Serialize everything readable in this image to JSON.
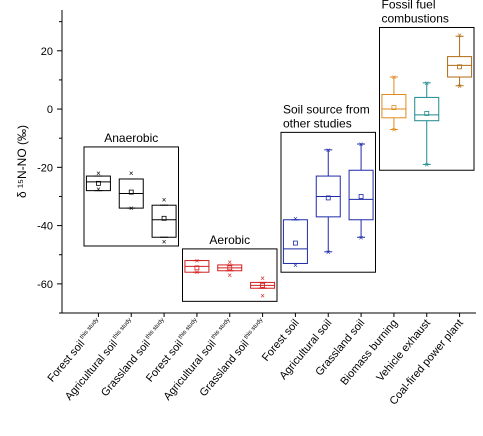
{
  "chart_data": {
    "type": "box",
    "ylabel": "δ ¹⁵N-NO (‰)",
    "ylim": [
      -70,
      34
    ],
    "yticks": [
      20,
      0,
      -20,
      -40,
      -60
    ],
    "grid": false,
    "categories": [
      {
        "label": "Forest soil",
        "sup": "this study"
      },
      {
        "label": "Agricultural soil",
        "sup": "this study"
      },
      {
        "label": "Grassland soil",
        "sup": "this study"
      },
      {
        "label": "Forest soil",
        "sup": "this study"
      },
      {
        "label": "Agricultural soil",
        "sup": "this study"
      },
      {
        "label": "Grassland soil",
        "sup": "this study"
      },
      {
        "label": "Forest soil",
        "sup": ""
      },
      {
        "label": "Agricultural soil",
        "sup": ""
      },
      {
        "label": "Grassland soil",
        "sup": ""
      },
      {
        "label": "Biomass burning",
        "sup": ""
      },
      {
        "label": "Vehicle exhaust",
        "sup": ""
      },
      {
        "label": "Coal-fired power plant",
        "sup": ""
      }
    ],
    "boxes": [
      {
        "q1": -28,
        "median": -25,
        "q3": -23,
        "whisker_low": -28,
        "whisker_high": -23,
        "mean": -25.5,
        "min": -27.5,
        "max": -22,
        "color": "#000000"
      },
      {
        "q1": -34,
        "median": -29,
        "q3": -24,
        "whisker_low": -34,
        "whisker_high": -24,
        "mean": -28.5,
        "min": -34,
        "max": -22,
        "color": "#000000"
      },
      {
        "q1": -44,
        "median": -38,
        "q3": -33,
        "whisker_low": -44,
        "whisker_high": -33,
        "mean": -37.5,
        "min": -45.5,
        "max": -31,
        "color": "#000000"
      },
      {
        "q1": -56,
        "median": -54,
        "q3": -52,
        "whisker_low": -56,
        "whisker_high": -52,
        "mean": -54.5,
        "min": -56,
        "max": -52,
        "color": "#d21f1f"
      },
      {
        "q1": -55.5,
        "median": -54.5,
        "q3": -53.5,
        "whisker_low": -55.5,
        "whisker_high": -53.5,
        "mean": -54.5,
        "min": -57,
        "max": -52.5,
        "color": "#d21f1f"
      },
      {
        "q1": -61.5,
        "median": -60.5,
        "q3": -59.5,
        "whisker_low": -61.5,
        "whisker_high": -59.5,
        "mean": -60.5,
        "min": -64,
        "max": -58,
        "color": "#d21f1f"
      },
      {
        "q1": -53,
        "median": -48,
        "q3": -38,
        "whisker_low": -53,
        "whisker_high": -38,
        "mean": -46,
        "min": -53.5,
        "max": -37.5,
        "color": "#1f2aa8"
      },
      {
        "q1": -37,
        "median": -30,
        "q3": -23,
        "whisker_low": -49,
        "whisker_high": -14,
        "mean": -30.5,
        "min": -49,
        "max": -14,
        "color": "#1f2aa8"
      },
      {
        "q1": -38,
        "median": -31,
        "q3": -21,
        "whisker_low": -44,
        "whisker_high": -12,
        "mean": -30,
        "min": -44,
        "max": -12,
        "color": "#1f2aa8"
      },
      {
        "q1": -3,
        "median": 0,
        "q3": 5,
        "whisker_low": -7,
        "whisker_high": 11,
        "mean": 0.5,
        "min": -7,
        "max": 11,
        "color": "#e08a1e"
      },
      {
        "q1": -4,
        "median": -2,
        "q3": 4,
        "whisker_low": -19,
        "whisker_high": 9,
        "mean": -1.5,
        "min": -19,
        "max": 9,
        "color": "#1c8a8c"
      },
      {
        "q1": 11,
        "median": 15,
        "q3": 18,
        "whisker_low": 8,
        "whisker_high": 25,
        "mean": 14.5,
        "min": 8,
        "max": 25.5,
        "color": "#b06a12"
      }
    ],
    "groups": [
      {
        "label": "Anaerobic",
        "lines": [
          "Anaerobic"
        ]
      },
      {
        "label": "Aerobic",
        "lines": [
          "Aerobic"
        ]
      },
      {
        "label": "Soil source from other studies",
        "lines": [
          "Soil source from",
          "other studies"
        ]
      },
      {
        "label": "Fossil fuel combustions",
        "lines": [
          "Fossil fuel",
          "combustions"
        ]
      }
    ]
  }
}
